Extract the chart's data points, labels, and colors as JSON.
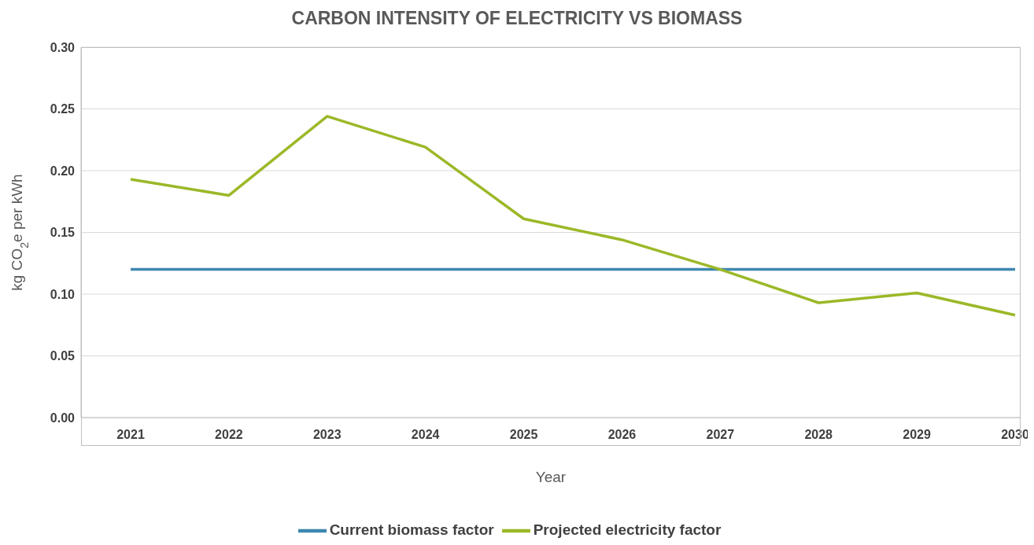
{
  "chart_data": {
    "type": "line",
    "title": "CARBON INTENSITY OF ELECTRICITY VS BIOMASS",
    "xlabel": "Year",
    "ylabel": "kg CO$_{2}$e per kWh",
    "categories": [
      "2021",
      "2022",
      "2023",
      "2024",
      "2025",
      "2026",
      "2027",
      "2028",
      "2029",
      "2030"
    ],
    "series": [
      {
        "name": "Current biomass factor",
        "color": "#3e87b0",
        "values": [
          0.12,
          0.12,
          0.12,
          0.12,
          0.12,
          0.12,
          0.12,
          0.12,
          0.12,
          0.12
        ]
      },
      {
        "name": "Projected electricity factor",
        "color": "#9bb828",
        "values": [
          0.193,
          0.18,
          0.244,
          0.219,
          0.161,
          0.144,
          0.12,
          0.093,
          0.101,
          0.083
        ]
      }
    ],
    "ylim": [
      0,
      0.3
    ],
    "yticks": [
      {
        "value": 0,
        "label": "0.00"
      },
      {
        "value": 0.05,
        "label": "0.05"
      },
      {
        "value": 0.1,
        "label": "0.10"
      },
      {
        "value": 0.15,
        "label": "0.15"
      },
      {
        "value": 0.2,
        "label": "0.20"
      },
      {
        "value": 0.25,
        "label": "0.25"
      },
      {
        "value": 0.3,
        "label": "0.30"
      }
    ],
    "grid": "y",
    "legend": "bottom",
    "marker": "none",
    "line_style": "solid"
  }
}
